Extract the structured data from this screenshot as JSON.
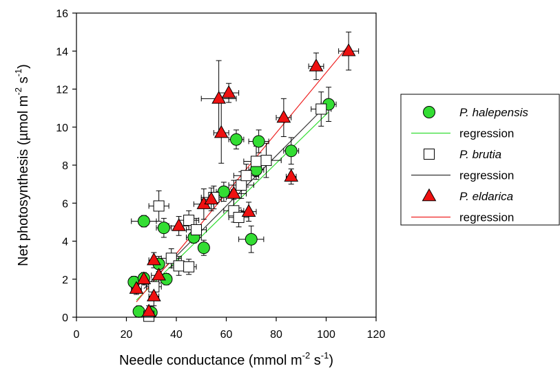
{
  "chart_data": {
    "type": "scatter",
    "title": "",
    "xlabel": {
      "main": "Needle conductance (mmol m",
      "sup1": "-2",
      "mid": " s",
      "sup2": "-1",
      "end": ")"
    },
    "ylabel": {
      "main": "Net photosynthesis (µmol m",
      "sup1": "-2",
      "mid": " s",
      "sup2": "-1",
      "end": ")"
    },
    "xlim": [
      0,
      120
    ],
    "ylim": [
      0,
      16
    ],
    "x_ticks": [
      0,
      20,
      40,
      60,
      80,
      100,
      120
    ],
    "y_ticks": [
      0,
      2,
      4,
      6,
      8,
      10,
      12,
      14,
      16
    ],
    "grid": false,
    "legend_position": "right",
    "series": [
      {
        "name": "P. halepensis",
        "marker": "circle",
        "color": "#33dd33",
        "regression_label": "regression",
        "regression_color": "#33dd33",
        "regression": {
          "x": [
            24,
            101
          ],
          "y": [
            0.9,
            10.8
          ]
        },
        "points": [
          {
            "x": 25,
            "y": 0.3,
            "xerr": 2,
            "yerr": 0.3
          },
          {
            "x": 30,
            "y": 0.25,
            "xerr": 2,
            "yerr": 0.3
          },
          {
            "x": 23,
            "y": 1.85,
            "xerr": 2,
            "yerr": 0.3
          },
          {
            "x": 27,
            "y": 2.05,
            "xerr": 2,
            "yerr": 0.3
          },
          {
            "x": 33,
            "y": 2.8,
            "xerr": 2,
            "yerr": 0.4
          },
          {
            "x": 36,
            "y": 2.0,
            "xerr": 2,
            "yerr": 0.3
          },
          {
            "x": 27,
            "y": 5.05,
            "xerr": 5,
            "yerr": 0.3
          },
          {
            "x": 35,
            "y": 4.7,
            "xerr": 3,
            "yerr": 0.5
          },
          {
            "x": 47,
            "y": 4.2,
            "xerr": 3,
            "yerr": 0.3
          },
          {
            "x": 51,
            "y": 3.65,
            "xerr": 2,
            "yerr": 0.4
          },
          {
            "x": 59,
            "y": 6.6,
            "xerr": 3,
            "yerr": 0.5
          },
          {
            "x": 64,
            "y": 9.35,
            "xerr": 3,
            "yerr": 0.5
          },
          {
            "x": 72,
            "y": 7.75,
            "xerr": 3,
            "yerr": 0.5
          },
          {
            "x": 73,
            "y": 9.25,
            "xerr": 4,
            "yerr": 0.6
          },
          {
            "x": 70,
            "y": 4.1,
            "xerr": 5,
            "yerr": 0.7
          },
          {
            "x": 86,
            "y": 8.75,
            "xerr": 3,
            "yerr": 0.7
          },
          {
            "x": 101,
            "y": 11.2,
            "xerr": 3,
            "yerr": 0.9
          }
        ]
      },
      {
        "name": "P. brutia",
        "marker": "square",
        "color": "#ffffff",
        "regression_label": "regression",
        "regression_color": "#333333",
        "regression": {
          "x": [
            27,
            99
          ],
          "y": [
            1.5,
            11.0
          ]
        },
        "points": [
          {
            "x": 29,
            "y": 0.05,
            "xerr": 2,
            "yerr": 0.25
          },
          {
            "x": 31,
            "y": 1.6,
            "xerr": 3,
            "yerr": 0.4
          },
          {
            "x": 33,
            "y": 5.85,
            "xerr": 4,
            "yerr": 0.8
          },
          {
            "x": 38,
            "y": 3.1,
            "xerr": 4,
            "yerr": 0.5
          },
          {
            "x": 41,
            "y": 2.7,
            "xerr": 3,
            "yerr": 0.5
          },
          {
            "x": 45,
            "y": 5.1,
            "xerr": 4,
            "yerr": 0.5
          },
          {
            "x": 45,
            "y": 2.65,
            "xerr": 3,
            "yerr": 0.4
          },
          {
            "x": 48,
            "y": 4.6,
            "xerr": 4,
            "yerr": 0.6
          },
          {
            "x": 55,
            "y": 6.3,
            "xerr": 5,
            "yerr": 0.6
          },
          {
            "x": 63,
            "y": 5.6,
            "xerr": 4,
            "yerr": 0.6
          },
          {
            "x": 65,
            "y": 5.25,
            "xerr": 4,
            "yerr": 0.5
          },
          {
            "x": 66,
            "y": 6.95,
            "xerr": 5,
            "yerr": 0.7
          },
          {
            "x": 68,
            "y": 7.45,
            "xerr": 5,
            "yerr": 0.6
          },
          {
            "x": 72,
            "y": 8.2,
            "xerr": 5,
            "yerr": 0.8
          },
          {
            "x": 76,
            "y": 8.25,
            "xerr": 6,
            "yerr": 0.9
          },
          {
            "x": 98,
            "y": 10.95,
            "xerr": 4,
            "yerr": 0.9
          }
        ]
      },
      {
        "name": "P. eldarica",
        "marker": "triangle",
        "color": "#ee1111",
        "regression_label": "regression",
        "regression_color": "#ee2222",
        "regression": {
          "x": [
            24,
            109
          ],
          "y": [
            0.8,
            14.3
          ]
        },
        "points": [
          {
            "x": 24,
            "y": 1.5,
            "xerr": 2,
            "yerr": 0.3
          },
          {
            "x": 27,
            "y": 2.0,
            "xerr": 2,
            "yerr": 0.3
          },
          {
            "x": 29,
            "y": 0.3,
            "xerr": 2,
            "yerr": 0.3
          },
          {
            "x": 31,
            "y": 3.0,
            "xerr": 2,
            "yerr": 0.4
          },
          {
            "x": 31,
            "y": 1.1,
            "xerr": 2,
            "yerr": 0.5
          },
          {
            "x": 33,
            "y": 2.2,
            "xerr": 3,
            "yerr": 0.4
          },
          {
            "x": 41,
            "y": 4.8,
            "xerr": 4,
            "yerr": 0.5
          },
          {
            "x": 51,
            "y": 5.95,
            "xerr": 4,
            "yerr": 0.8
          },
          {
            "x": 54,
            "y": 6.2,
            "xerr": 4,
            "yerr": 0.6
          },
          {
            "x": 57,
            "y": 11.5,
            "xerr": 7,
            "yerr": 2.0
          },
          {
            "x": 58,
            "y": 9.7,
            "xerr": 3,
            "yerr": 1.6
          },
          {
            "x": 61,
            "y": 11.8,
            "xerr": 4,
            "yerr": 0.5
          },
          {
            "x": 63,
            "y": 6.5,
            "xerr": 5,
            "yerr": 0.7
          },
          {
            "x": 69,
            "y": 5.55,
            "xerr": 3,
            "yerr": 0.5
          },
          {
            "x": 83,
            "y": 10.5,
            "xerr": 3,
            "yerr": 1.0
          },
          {
            "x": 86,
            "y": 7.4,
            "xerr": 2,
            "yerr": 0.4
          },
          {
            "x": 96,
            "y": 13.2,
            "xerr": 3,
            "yerr": 0.7
          },
          {
            "x": 109,
            "y": 14.0,
            "xerr": 4,
            "yerr": 1.0
          }
        ]
      }
    ]
  }
}
